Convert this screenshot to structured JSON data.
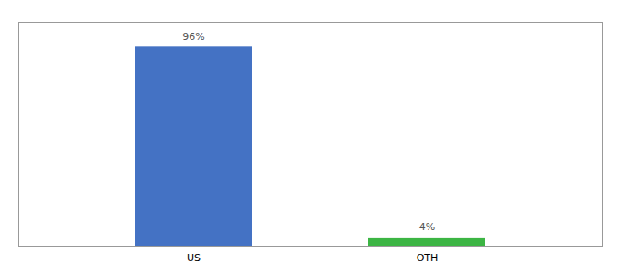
{
  "chart_data": {
    "type": "bar",
    "categories": [
      "US",
      "OTH"
    ],
    "values": [
      96,
      4
    ],
    "value_labels": [
      "96%",
      "4%"
    ],
    "colors": [
      "#4472c4",
      "#3cb544"
    ],
    "ylim": [
      0,
      108
    ],
    "data_labels": true,
    "tick_labels": "x"
  }
}
